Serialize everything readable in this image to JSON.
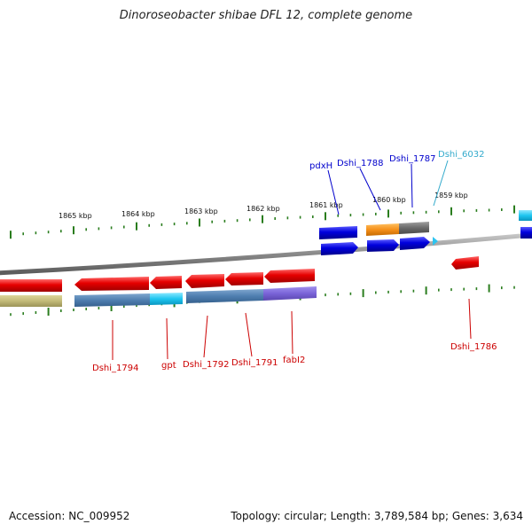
{
  "title": "Dinoroseobacter shibae DFL 12, complete genome",
  "footer": {
    "accession": "Accession: NC_009952",
    "summary": "Topology: circular; Length: 3,789,584 bp; Genes: 3,634"
  },
  "colors": {
    "forward_strand": "#e60000",
    "reverse_strand": "#0000cc",
    "tick": "#2a7d1e",
    "backbone": "#8a8a8a",
    "label_red": "#cc0000",
    "label_blue": "#0000cc",
    "label_cyan": "#33aacc"
  },
  "scale": {
    "ticks": [
      "1865 kbp",
      "1864 kbp",
      "1863 kbp",
      "1862 kbp",
      "1861 kbp",
      "1860 kbp",
      "1859 kbp"
    ]
  },
  "gene_labels": [
    {
      "text": "Dshi_1794",
      "color": "label_red"
    },
    {
      "text": "gpt",
      "color": "label_red"
    },
    {
      "text": "Dshi_1792",
      "color": "label_red"
    },
    {
      "text": "Dshi_1791",
      "color": "label_red"
    },
    {
      "text": "fabI2",
      "color": "label_red"
    },
    {
      "text": "Dshi_1786",
      "color": "label_red"
    },
    {
      "text": "pdxH",
      "color": "label_blue"
    },
    {
      "text": "Dshi_1788",
      "color": "label_blue"
    },
    {
      "text": "Dshi_1787",
      "color": "label_blue"
    },
    {
      "text": "Dshi_6032",
      "color": "label_cyan"
    }
  ]
}
